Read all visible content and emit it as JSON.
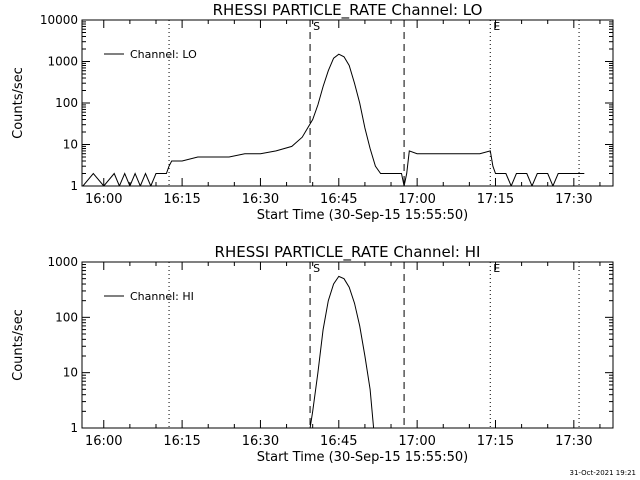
{
  "footer": {
    "timestamp": "31-Oct-2021 19:21"
  },
  "chart_data": [
    {
      "type": "line",
      "title": "RHESSI PARTICLE_RATE Channel: LO",
      "xlabel": "Start Time (30-Sep-15 15:55:50)",
      "ylabel": "Counts/sec",
      "y_scale": "log",
      "ylim": [
        1,
        10000
      ],
      "xlim": [
        "15:55:50",
        "17:37:30"
      ],
      "x_ticks": [
        "16:00",
        "16:15",
        "16:30",
        "16:45",
        "17:00",
        "17:15",
        "17:30"
      ],
      "y_ticks": [
        "1",
        "10",
        "100",
        "1000",
        "10000"
      ],
      "markers": [
        {
          "time": "16:12:30",
          "style": "dotted",
          "label": ""
        },
        {
          "time": "16:39:30",
          "style": "dashed",
          "label": "S"
        },
        {
          "time": "16:57:30",
          "style": "dashed",
          "label": ""
        },
        {
          "time": "17:14:00",
          "style": "dotted",
          "label": "E"
        },
        {
          "time": "17:31:00",
          "style": "dotted",
          "label": ""
        }
      ],
      "legend": {
        "position": "top-left",
        "entries": [
          "Channel: LO"
        ]
      },
      "series": [
        {
          "name": "Channel: LO",
          "points": [
            [
              "15:56:00",
              1
            ],
            [
              "15:58:00",
              2
            ],
            [
              "16:00:00",
              1
            ],
            [
              "16:02:00",
              2
            ],
            [
              "16:03:00",
              1
            ],
            [
              "16:04:00",
              2
            ],
            [
              "16:05:00",
              1
            ],
            [
              "16:06:00",
              2
            ],
            [
              "16:07:00",
              1
            ],
            [
              "16:08:00",
              2
            ],
            [
              "16:09:00",
              1
            ],
            [
              "16:10:00",
              2
            ],
            [
              "16:12:00",
              2
            ],
            [
              "16:12:30",
              3
            ],
            [
              "16:13:00",
              4
            ],
            [
              "16:15:00",
              4
            ],
            [
              "16:18:00",
              5
            ],
            [
              "16:21:00",
              5
            ],
            [
              "16:24:00",
              5
            ],
            [
              "16:27:00",
              6
            ],
            [
              "16:30:00",
              6
            ],
            [
              "16:33:00",
              7
            ],
            [
              "16:36:00",
              9
            ],
            [
              "16:38:00",
              15
            ],
            [
              "16:40:00",
              40
            ],
            [
              "16:41:00",
              90
            ],
            [
              "16:42:00",
              250
            ],
            [
              "16:43:00",
              600
            ],
            [
              "16:44:00",
              1200
            ],
            [
              "16:45:00",
              1500
            ],
            [
              "16:46:00",
              1300
            ],
            [
              "16:47:00",
              800
            ],
            [
              "16:48:00",
              300
            ],
            [
              "16:49:00",
              100
            ],
            [
              "16:50:00",
              25
            ],
            [
              "16:51:00",
              8
            ],
            [
              "16:52:00",
              3
            ],
            [
              "16:53:00",
              2
            ],
            [
              "16:55:00",
              2
            ],
            [
              "16:57:00",
              2
            ],
            [
              "16:57:30",
              1
            ],
            [
              "16:58:00",
              2
            ],
            [
              "16:58:30",
              7
            ],
            [
              "17:00:00",
              6
            ],
            [
              "17:03:00",
              6
            ],
            [
              "17:06:00",
              6
            ],
            [
              "17:09:00",
              6
            ],
            [
              "17:12:00",
              6
            ],
            [
              "17:14:00",
              7
            ],
            [
              "17:14:30",
              3
            ],
            [
              "17:15:00",
              2
            ],
            [
              "17:17:00",
              2
            ],
            [
              "17:18:00",
              1
            ],
            [
              "17:19:00",
              2
            ],
            [
              "17:21:00",
              2
            ],
            [
              "17:22:00",
              1
            ],
            [
              "17:23:00",
              2
            ],
            [
              "17:25:00",
              2
            ],
            [
              "17:26:00",
              1
            ],
            [
              "17:27:00",
              2
            ],
            [
              "17:30:00",
              2
            ],
            [
              "17:32:00",
              2
            ]
          ]
        }
      ]
    },
    {
      "type": "line",
      "title": "RHESSI PARTICLE_RATE Channel: HI",
      "xlabel": "Start Time (30-Sep-15 15:55:50)",
      "ylabel": "Counts/sec",
      "y_scale": "log",
      "ylim": [
        1,
        1000
      ],
      "xlim": [
        "15:55:50",
        "17:37:30"
      ],
      "x_ticks": [
        "16:00",
        "16:15",
        "16:30",
        "16:45",
        "17:00",
        "17:15",
        "17:30"
      ],
      "y_ticks": [
        "1",
        "10",
        "100",
        "1000"
      ],
      "markers": [
        {
          "time": "16:12:30",
          "style": "dotted",
          "label": ""
        },
        {
          "time": "16:39:30",
          "style": "dashed",
          "label": "S"
        },
        {
          "time": "16:57:30",
          "style": "dashed",
          "label": ""
        },
        {
          "time": "17:14:00",
          "style": "dotted",
          "label": "E"
        },
        {
          "time": "17:31:00",
          "style": "dotted",
          "label": ""
        }
      ],
      "legend": {
        "position": "top-left",
        "entries": [
          "Channel: HI"
        ]
      },
      "series": [
        {
          "name": "Channel: HI",
          "points": [
            [
              "16:39:30",
              1
            ],
            [
              "16:40:00",
              2
            ],
            [
              "16:41:00",
              10
            ],
            [
              "16:42:00",
              60
            ],
            [
              "16:43:00",
              200
            ],
            [
              "16:44:00",
              400
            ],
            [
              "16:45:00",
              550
            ],
            [
              "16:46:00",
              500
            ],
            [
              "16:47:00",
              350
            ],
            [
              "16:48:00",
              180
            ],
            [
              "16:49:00",
              70
            ],
            [
              "16:50:00",
              20
            ],
            [
              "16:51:00",
              5
            ],
            [
              "16:51:40",
              1
            ]
          ]
        }
      ]
    }
  ]
}
